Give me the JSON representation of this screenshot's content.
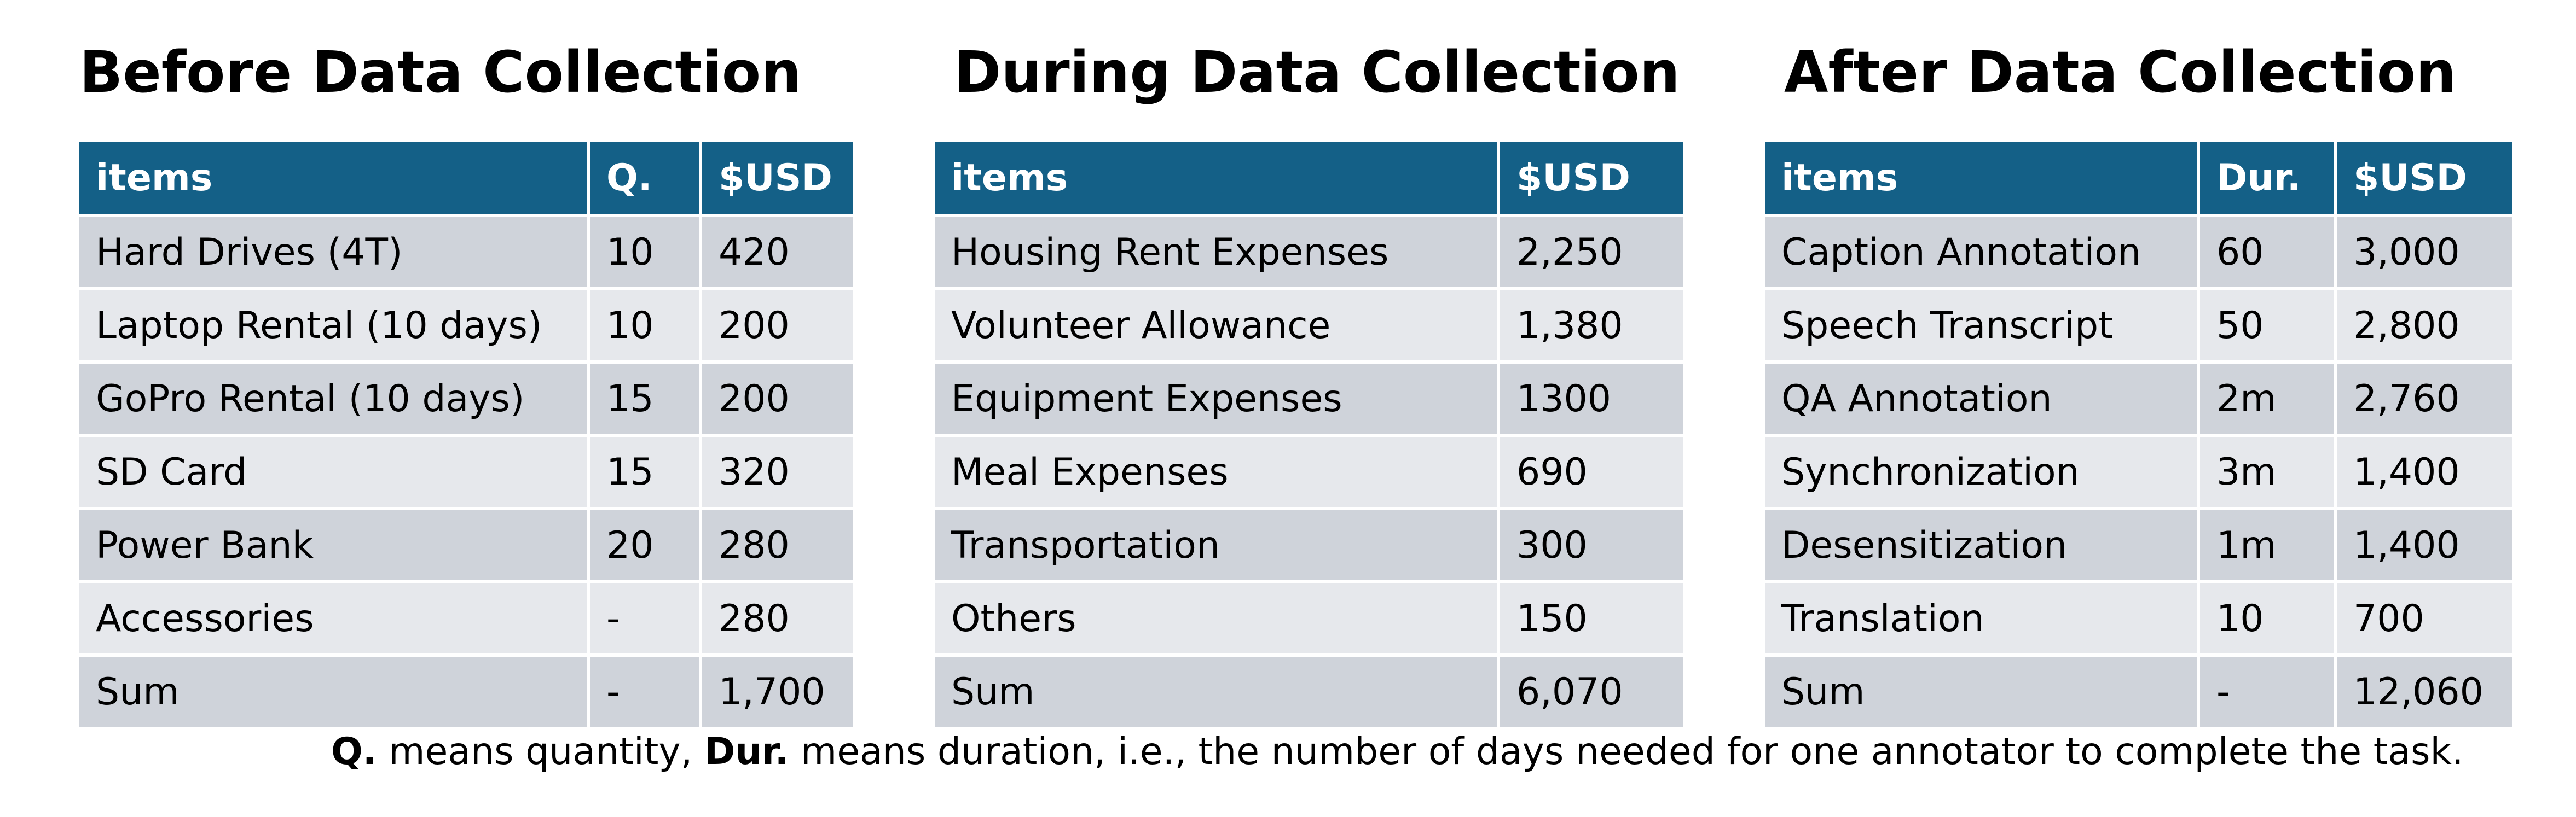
{
  "before": {
    "title": "Before Data Collection",
    "headers": [
      "items",
      "Q.",
      "$USD"
    ],
    "rows": [
      [
        "Hard Drives (4T)",
        "10",
        "420"
      ],
      [
        "Laptop Rental (10 days)",
        "10",
        "200"
      ],
      [
        "GoPro Rental (10 days)",
        "15",
        "200"
      ],
      [
        "SD Card",
        "15",
        "320"
      ],
      [
        "Power Bank",
        "20",
        "280"
      ],
      [
        "Accessories",
        "-",
        "280"
      ],
      [
        "Sum",
        "-",
        "1,700"
      ]
    ]
  },
  "during": {
    "title": "During Data Collection",
    "headers": [
      "items",
      "$USD"
    ],
    "rows": [
      [
        "Housing Rent Expenses",
        "2,250"
      ],
      [
        "Volunteer Allowance",
        "1,380"
      ],
      [
        "Equipment Expenses",
        "1300"
      ],
      [
        "Meal Expenses",
        "690"
      ],
      [
        "Transportation",
        "300"
      ],
      [
        "Others",
        "150"
      ],
      [
        "Sum",
        "6,070"
      ]
    ]
  },
  "after": {
    "title": "After Data Collection",
    "headers": [
      "items",
      "Dur.",
      "$USD"
    ],
    "rows": [
      [
        "Caption Annotation",
        "60",
        "3,000"
      ],
      [
        "Speech Transcript",
        "50",
        "2,800"
      ],
      [
        "QA Annotation",
        "2m",
        "2,760"
      ],
      [
        "Synchronization",
        "3m",
        "1,400"
      ],
      [
        "Desensitization",
        "1m",
        "1,400"
      ],
      [
        "Translation",
        "10",
        "700"
      ],
      [
        "Sum",
        "-",
        "12,060"
      ]
    ]
  },
  "footnote": {
    "q_term": "Q.",
    "q_def": " means quantity, ",
    "dur_term": "Dur.",
    "dur_def": " means duration, i.e., the number of days needed for one annotator to complete the task."
  }
}
